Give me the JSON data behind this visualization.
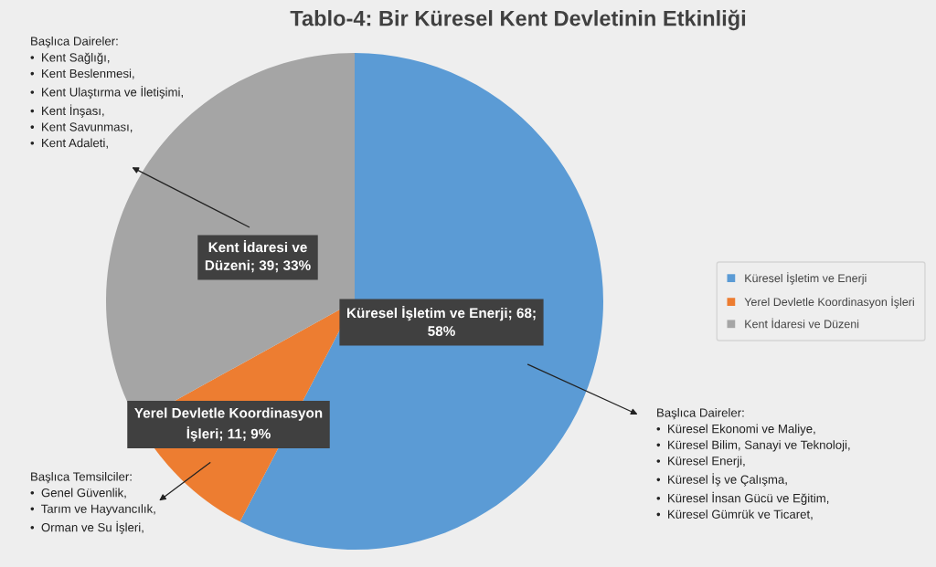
{
  "chart_data": {
    "type": "pie",
    "title": "Tablo-4: Bir Küresel Kent Devletinin Etkinliği",
    "categories": [
      "Küresel İşletim ve Enerji",
      "Yerel Devletle Koordinasyon İşleri",
      "Kent İdaresi ve Düzeni"
    ],
    "values": [
      68,
      11,
      39
    ],
    "colors": [
      "#5b9bd5",
      "#ed7d31",
      "#a5a5a5"
    ],
    "value_labels": [
      "Küresel İşletim ve Enerji; 68;\n58%",
      "Yerel Devletle Koordinasyon\nİşleri; 11; 9%",
      "Kent İdaresi ve\nDüzeni; 39; 33%"
    ],
    "legend": "right",
    "annotations": [
      "Başlıca Daireler:\n•  Kent Sağlığı,\n•  Kent Beslenmesi,\n•  Kent Ulaştırma ve İletişimi,\n•  Kent İnşası,\n•  Kent Savunması,\n•  Kent Adaleti,",
      "Başlıca Daireler:\n•  Küresel Ekonomi ve Maliye,\n•  Küresel Bilim, Sanayi ve Teknoloji,\n•  Küresel Enerji,\n•  Küresel İş ve Çalışma,\n•  Küresel İnsan Gücü ve Eğitim,\n•  Küresel Gümrük ve Ticaret,",
      "Başlıca Temsilciler:\n•  Genel Güvenlik,\n•  Tarım ve Hayvancılık,\n•  Orman ve Su İşleri,"
    ]
  }
}
